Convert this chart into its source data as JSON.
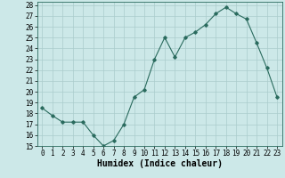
{
  "hours": [
    0,
    1,
    2,
    3,
    4,
    5,
    6,
    7,
    8,
    9,
    10,
    11,
    12,
    13,
    14,
    15,
    16,
    17,
    18,
    19,
    20,
    21,
    22,
    23
  ],
  "values": [
    18.5,
    17.8,
    17.2,
    17.2,
    17.2,
    16.0,
    15.0,
    15.5,
    17.0,
    19.5,
    20.2,
    23.0,
    25.0,
    23.2,
    25.0,
    25.5,
    26.2,
    27.2,
    27.8,
    27.2,
    26.7,
    24.5,
    22.2,
    19.5
  ],
  "xlim": [
    -0.5,
    23.5
  ],
  "ylim": [
    15,
    28
  ],
  "yticks": [
    15,
    16,
    17,
    18,
    19,
    20,
    21,
    22,
    23,
    24,
    25,
    26,
    27,
    28
  ],
  "xticks": [
    0,
    1,
    2,
    3,
    4,
    5,
    6,
    7,
    8,
    9,
    10,
    11,
    12,
    13,
    14,
    15,
    16,
    17,
    18,
    19,
    20,
    21,
    22,
    23
  ],
  "xlabel": "Humidex (Indice chaleur)",
  "line_color": "#2a6b5e",
  "marker": "D",
  "marker_size": 1.8,
  "bg_color": "#cce8e8",
  "grid_color": "#aacccc",
  "xlabel_fontsize": 7,
  "tick_fontsize": 5.5
}
